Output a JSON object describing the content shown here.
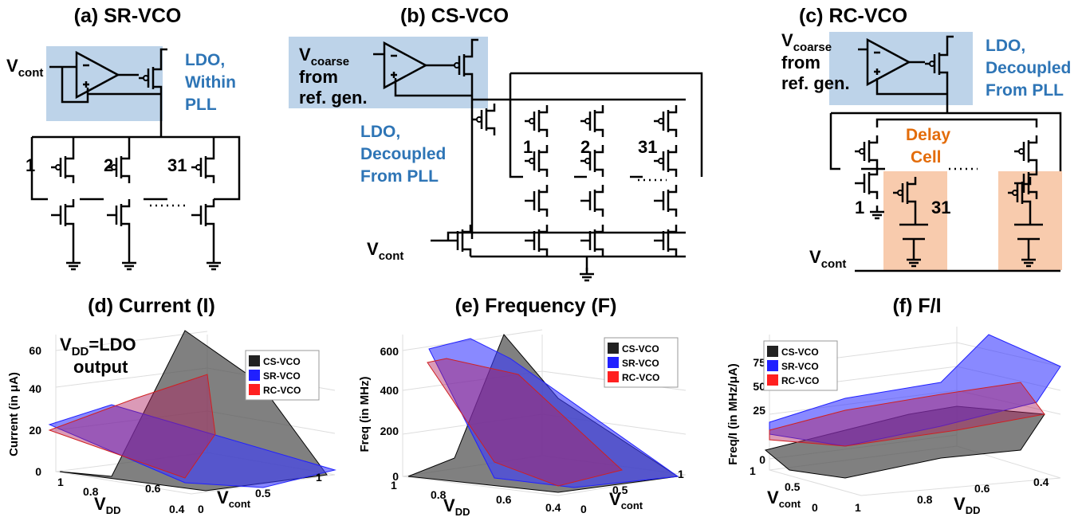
{
  "circuits": [
    {
      "title": "(a) SR-VCO",
      "input": {
        "base": "V",
        "sub": "cont"
      },
      "ldo": [
        "LDO,",
        "Within",
        "PLL"
      ],
      "stages": [
        "1",
        "2",
        "31"
      ]
    },
    {
      "title": "(b) CS-VCO",
      "input": {
        "base": "V",
        "sub": "coarse"
      },
      "source": [
        "from",
        "ref. gen."
      ],
      "ldo": [
        "LDO,",
        "Decoupled",
        "From PLL"
      ],
      "stages": [
        "1",
        "2",
        "31"
      ],
      "control": {
        "base": "V",
        "sub": "cont"
      }
    },
    {
      "title": "(c) RC-VCO",
      "input": {
        "base": "V",
        "sub": "coarse"
      },
      "source": [
        "from",
        "ref. gen."
      ],
      "ldo": [
        "LDO,",
        "Decoupled",
        "From PLL"
      ],
      "cell": [
        "Delay",
        "Cell"
      ],
      "stages": [
        "1",
        "31"
      ],
      "control": {
        "base": "V",
        "sub": "cont"
      }
    }
  ],
  "plots": [
    {
      "title": "(d) Current (I)",
      "z_label": "Current (in μA)",
      "z_ticks": [
        "0",
        "20",
        "40",
        "60"
      ],
      "annotation": {
        "base": "V",
        "sub": "DD",
        "rest": "=LDO",
        "line2": "output"
      },
      "legend": [
        "CS-VCO",
        "SR-VCO",
        "RC-VCO"
      ],
      "vdd_label": {
        "base": "V",
        "sub": "DD"
      },
      "vdd_ticks": [
        "1",
        "0.8",
        "0.6",
        "0.4"
      ],
      "vcont_label": {
        "base": "V",
        "sub": "cont"
      },
      "vcont_ticks": [
        "0",
        "0.5",
        "1"
      ]
    },
    {
      "title": "(e) Frequency (F)",
      "z_label": "Freq (in MHz)",
      "z_ticks": [
        "0",
        "200",
        "400",
        "600"
      ],
      "legend": [
        "CS-VCO",
        "SR-VCO",
        "RC-VCO"
      ],
      "vdd_label": {
        "base": "V",
        "sub": "DD"
      },
      "vdd_ticks": [
        "1",
        "0.8",
        "0.6",
        "0.4"
      ],
      "vcont_label": {
        "base": "V",
        "sub": "cont"
      },
      "vcont_ticks": [
        "0",
        "0.5",
        "1"
      ]
    },
    {
      "title": "(f) F/I",
      "z_label": "Freq/I (in MHz/μA)",
      "z_ticks": [
        "0",
        "25",
        "50",
        "75"
      ],
      "legend": [
        "CS-VCO",
        "SR-VCO",
        "RC-VCO"
      ],
      "vcont_label": {
        "base": "V",
        "sub": "cont"
      },
      "vcont_ticks": [
        "1",
        "0.5",
        "0"
      ],
      "vdd_label": {
        "base": "V",
        "sub": "DD"
      },
      "vdd_ticks": [
        "1",
        "0.8",
        "0.6",
        "0.4"
      ]
    }
  ]
}
